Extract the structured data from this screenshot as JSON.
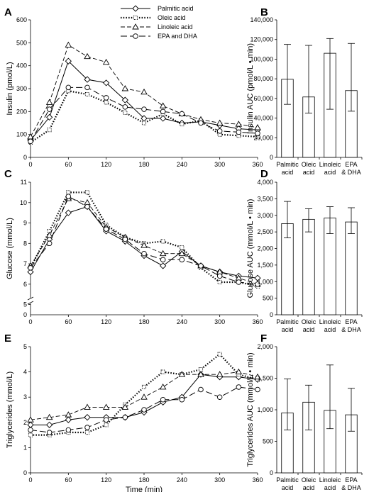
{
  "legend": {
    "entries": [
      {
        "label": "Palmitic acid",
        "dash": "",
        "width": 1,
        "marker": "diamond"
      },
      {
        "label": "Oleic acid",
        "dash": "1.5,2.2",
        "width": 2.2,
        "marker": "square"
      },
      {
        "label": "Linoleic acid",
        "dash": "6,3",
        "width": 0.9,
        "marker": "triangle"
      },
      {
        "label": "EPA and DHA",
        "dash": "9,4",
        "width": 1,
        "marker": "circle"
      }
    ]
  },
  "panels": [
    {
      "id": "A",
      "letter": "A",
      "type": "line",
      "ylabel": "Insulin (pmol/L)",
      "xlabel": "",
      "ylim": [
        0,
        600
      ],
      "yticks": [
        0,
        100,
        200,
        300,
        400,
        500,
        600
      ],
      "ytick_labels": [
        "0",
        "100",
        "200",
        "300",
        "400",
        "500",
        "600"
      ],
      "xlim": [
        0,
        360
      ],
      "xticks": [
        0,
        60,
        120,
        180,
        240,
        300,
        360
      ],
      "xtick_labels": [
        "0",
        "60",
        "120",
        "180",
        "240",
        "300",
        "360"
      ],
      "x": [
        0,
        30,
        60,
        90,
        120,
        150,
        180,
        210,
        240,
        270,
        300,
        330,
        360
      ],
      "series": [
        {
          "name": "Palmitic acid",
          "values": [
            75,
            175,
            420,
            340,
            325,
            250,
            170,
            170,
            150,
            155,
            140,
            125,
            120
          ]
        },
        {
          "name": "Oleic acid",
          "values": [
            65,
            120,
            290,
            275,
            240,
            195,
            150,
            190,
            145,
            160,
            100,
            95,
            90
          ]
        },
        {
          "name": "Linoleic acid",
          "values": [
            90,
            240,
            490,
            440,
            415,
            300,
            285,
            225,
            190,
            165,
            150,
            145,
            130
          ]
        },
        {
          "name": "EPA and DHA",
          "values": [
            70,
            210,
            305,
            305,
            260,
            220,
            210,
            200,
            190,
            150,
            115,
            110,
            105
          ]
        }
      ]
    },
    {
      "id": "B",
      "letter": "B",
      "type": "bar",
      "ylabel": "Insulin AUC (pmol/L • min)",
      "ylim": [
        0,
        140000
      ],
      "yticks": [
        0,
        20000,
        40000,
        60000,
        80000,
        100000,
        120000,
        140000
      ],
      "ytick_labels": [
        "0",
        "20,000",
        "40,000",
        "60,000",
        "80,000",
        "100,000",
        "120,000",
        "140,000"
      ],
      "categories": [
        [
          "Palmitic",
          "acid"
        ],
        [
          "Oleic",
          "acid"
        ],
        [
          "Linoleic",
          "acid"
        ],
        [
          "EPA",
          "& DHA"
        ]
      ],
      "values": [
        79500,
        61500,
        106000,
        68000
      ],
      "err_low": [
        54000,
        45000,
        49000,
        47000
      ],
      "err_high": [
        115000,
        114000,
        121000,
        116000
      ]
    },
    {
      "id": "C",
      "letter": "C",
      "type": "line",
      "ylabel": "Glucose (mmol/L)",
      "xlabel": "",
      "ylim": [
        4.5,
        11
      ],
      "axis_break": true,
      "yticks": [
        5,
        6,
        7,
        8,
        9,
        10,
        11
      ],
      "ytick_labels": [
        "5",
        "6",
        "7",
        "8",
        "9",
        "10",
        "11"
      ],
      "ybottom_label": "0",
      "xlim": [
        0,
        360
      ],
      "xticks": [
        0,
        60,
        120,
        180,
        240,
        300,
        360
      ],
      "xtick_labels": [
        "0",
        "60",
        "120",
        "180",
        "240",
        "300",
        "360"
      ],
      "x": [
        0,
        30,
        60,
        90,
        120,
        150,
        180,
        210,
        240,
        270,
        300,
        330,
        360
      ],
      "series": [
        {
          "name": "Palmitic acid",
          "values": [
            6.6,
            8.2,
            9.5,
            9.8,
            8.6,
            8.1,
            7.4,
            6.9,
            7.6,
            6.9,
            6.6,
            6.4,
            6.3
          ]
        },
        {
          "name": "Oleic acid",
          "values": [
            6.8,
            8.6,
            10.5,
            10.5,
            8.9,
            8.3,
            8.0,
            8.1,
            7.8,
            6.8,
            6.1,
            6.1,
            5.9
          ]
        },
        {
          "name": "Linoleic acid",
          "values": [
            6.9,
            8.4,
            10.2,
            10.0,
            8.8,
            8.3,
            7.9,
            7.5,
            7.5,
            6.9,
            6.6,
            6.3,
            6.0
          ]
        },
        {
          "name": "EPA and DHA",
          "values": [
            6.8,
            8.0,
            10.3,
            9.8,
            8.7,
            8.2,
            7.5,
            7.2,
            7.2,
            6.9,
            6.4,
            6.1,
            6.0
          ]
        }
      ]
    },
    {
      "id": "D",
      "letter": "D",
      "type": "bar",
      "ylabel": "Glucose AUC (mmol/L • min)",
      "ylim": [
        0,
        4000
      ],
      "yticks": [
        0,
        500,
        1000,
        1500,
        2000,
        2500,
        3000,
        3500,
        4000
      ],
      "ytick_labels": [
        "0",
        "500",
        "1,000",
        "1,500",
        "2,000",
        "2,500",
        "3,000",
        "3,500",
        "4,000"
      ],
      "categories": [
        [
          "Palmitic",
          "acid"
        ],
        [
          "Oleic",
          "acid"
        ],
        [
          "Linoleic",
          "acid"
        ],
        [
          "EPA",
          "& DHA"
        ]
      ],
      "values": [
        2750,
        2880,
        2920,
        2800
      ],
      "err_low": [
        2320,
        2500,
        2450,
        2450
      ],
      "err_high": [
        3420,
        3200,
        3260,
        3230
      ]
    },
    {
      "id": "E",
      "letter": "E",
      "type": "line",
      "ylabel": "Triglycerides (mmol/L)",
      "xlabel": "Time (min)",
      "ylim": [
        0,
        5
      ],
      "yticks": [
        0,
        1,
        2,
        3,
        4,
        5
      ],
      "ytick_labels": [
        "0",
        "1",
        "2",
        "3",
        "4",
        "5"
      ],
      "xlim": [
        0,
        360
      ],
      "xticks": [
        0,
        60,
        120,
        180,
        240,
        300,
        360
      ],
      "xtick_labels": [
        "0",
        "60",
        "120",
        "180",
        "240",
        "300",
        "360"
      ],
      "x": [
        0,
        30,
        60,
        90,
        120,
        150,
        180,
        210,
        240,
        270,
        300,
        330,
        360
      ],
      "series": [
        {
          "name": "Palmitic acid",
          "values": [
            1.9,
            1.9,
            2.1,
            2.2,
            2.2,
            2.2,
            2.4,
            2.8,
            3.0,
            3.9,
            3.8,
            3.8,
            3.7
          ]
        },
        {
          "name": "Oleic acid",
          "values": [
            1.5,
            1.5,
            1.6,
            1.6,
            1.9,
            2.7,
            3.4,
            4.0,
            3.9,
            4.1,
            4.7,
            3.9,
            3.7
          ]
        },
        {
          "name": "Linoleic acid",
          "values": [
            2.1,
            2.2,
            2.3,
            2.6,
            2.6,
            2.6,
            3.0,
            3.4,
            3.9,
            3.9,
            3.9,
            4.0,
            3.8
          ]
        },
        {
          "name": "EPA and DHA",
          "values": [
            1.7,
            1.6,
            1.7,
            1.8,
            2.1,
            2.2,
            2.5,
            2.9,
            2.9,
            3.3,
            3.0,
            3.4,
            3.3
          ]
        }
      ]
    },
    {
      "id": "F",
      "letter": "F",
      "type": "bar",
      "ylabel": "Triglycerides AUC (mmol/L • min)",
      "ylim": [
        0,
        2000
      ],
      "yticks": [
        0,
        500,
        1000,
        1500,
        2000
      ],
      "ytick_labels": [
        "0",
        "500",
        "1,000",
        "1,500",
        "2,000"
      ],
      "categories": [
        [
          "Palmitic",
          "acid"
        ],
        [
          "Oleic",
          "acid"
        ],
        [
          "Linoleic",
          "acid"
        ],
        [
          "EPA",
          "& DHA"
        ]
      ],
      "values": [
        950,
        1120,
        990,
        920
      ],
      "err_low": [
        680,
        680,
        700,
        660
      ],
      "err_high": [
        1490,
        1390,
        1710,
        1340
      ]
    }
  ],
  "chart_data": [
    {
      "type": "line",
      "title": "",
      "ylabel": "Insulin (pmol/L)",
      "xlabel": "",
      "ylim": [
        0,
        600
      ],
      "xlim": [
        0,
        360
      ],
      "x": [
        0,
        30,
        60,
        90,
        120,
        150,
        180,
        210,
        240,
        270,
        300,
        330,
        360
      ],
      "series": [
        {
          "name": "Palmitic acid",
          "values": [
            75,
            175,
            420,
            340,
            325,
            250,
            170,
            170,
            150,
            155,
            140,
            125,
            120
          ]
        },
        {
          "name": "Oleic acid",
          "values": [
            65,
            120,
            290,
            275,
            240,
            195,
            150,
            190,
            145,
            160,
            100,
            95,
            90
          ]
        },
        {
          "name": "Linoleic acid",
          "values": [
            90,
            240,
            490,
            440,
            415,
            300,
            285,
            225,
            190,
            165,
            150,
            145,
            130
          ]
        },
        {
          "name": "EPA and DHA",
          "values": [
            70,
            210,
            305,
            305,
            260,
            220,
            210,
            200,
            190,
            150,
            115,
            110,
            105
          ]
        }
      ],
      "legend": "top-right"
    },
    {
      "type": "bar",
      "title": "",
      "ylabel": "Insulin AUC (pmol/L • min)",
      "ylim": [
        0,
        140000
      ],
      "categories": [
        "Palmitic acid",
        "Oleic acid",
        "Linoleic acid",
        "EPA & DHA"
      ],
      "values": [
        79500,
        61500,
        106000,
        68000
      ]
    },
    {
      "type": "line",
      "title": "",
      "ylabel": "Glucose (mmol/L)",
      "xlabel": "",
      "ylim": [
        4.5,
        11
      ],
      "xlim": [
        0,
        360
      ],
      "x": [
        0,
        30,
        60,
        90,
        120,
        150,
        180,
        210,
        240,
        270,
        300,
        330,
        360
      ],
      "series": [
        {
          "name": "Palmitic acid",
          "values": [
            6.6,
            8.2,
            9.5,
            9.8,
            8.6,
            8.1,
            7.4,
            6.9,
            7.6,
            6.9,
            6.6,
            6.4,
            6.3
          ]
        },
        {
          "name": "Oleic acid",
          "values": [
            6.8,
            8.6,
            10.5,
            10.5,
            8.9,
            8.3,
            8.0,
            8.1,
            7.8,
            6.8,
            6.1,
            6.1,
            5.9
          ]
        },
        {
          "name": "Linoleic acid",
          "values": [
            6.9,
            8.4,
            10.2,
            10.0,
            8.8,
            8.3,
            7.9,
            7.5,
            7.5,
            6.9,
            6.6,
            6.3,
            6.0
          ]
        },
        {
          "name": "EPA and DHA",
          "values": [
            6.8,
            8.0,
            10.3,
            9.8,
            8.7,
            8.2,
            7.5,
            7.2,
            7.2,
            6.9,
            6.4,
            6.1,
            6.0
          ]
        }
      ]
    },
    {
      "type": "bar",
      "title": "",
      "ylabel": "Glucose AUC (mmol/L • min)",
      "ylim": [
        0,
        4000
      ],
      "categories": [
        "Palmitic acid",
        "Oleic acid",
        "Linoleic acid",
        "EPA & DHA"
      ],
      "values": [
        2750,
        2880,
        2920,
        2800
      ]
    },
    {
      "type": "line",
      "title": "",
      "ylabel": "Triglycerides (mmol/L)",
      "xlabel": "Time (min)",
      "ylim": [
        0,
        5
      ],
      "xlim": [
        0,
        360
      ],
      "x": [
        0,
        30,
        60,
        90,
        120,
        150,
        180,
        210,
        240,
        270,
        300,
        330,
        360
      ],
      "series": [
        {
          "name": "Palmitic acid",
          "values": [
            1.9,
            1.9,
            2.1,
            2.2,
            2.2,
            2.2,
            2.4,
            2.8,
            3.0,
            3.9,
            3.8,
            3.8,
            3.7
          ]
        },
        {
          "name": "Oleic acid",
          "values": [
            1.5,
            1.5,
            1.6,
            1.6,
            1.9,
            2.7,
            3.4,
            4.0,
            3.9,
            4.1,
            4.7,
            3.9,
            3.7
          ]
        },
        {
          "name": "Linoleic acid",
          "values": [
            2.1,
            2.2,
            2.3,
            2.6,
            2.6,
            2.6,
            3.0,
            3.4,
            3.9,
            3.9,
            3.9,
            4.0,
            3.8
          ]
        },
        {
          "name": "EPA and DHA",
          "values": [
            1.7,
            1.6,
            1.7,
            1.8,
            2.1,
            2.2,
            2.5,
            2.9,
            2.9,
            3.3,
            3.0,
            3.4,
            3.3
          ]
        }
      ]
    },
    {
      "type": "bar",
      "title": "",
      "ylabel": "Triglycerides AUC (mmol/L • min)",
      "ylim": [
        0,
        2000
      ],
      "categories": [
        "Palmitic acid",
        "Oleic acid",
        "Linoleic acid",
        "EPA & DHA"
      ],
      "values": [
        950,
        1120,
        990,
        920
      ]
    }
  ]
}
